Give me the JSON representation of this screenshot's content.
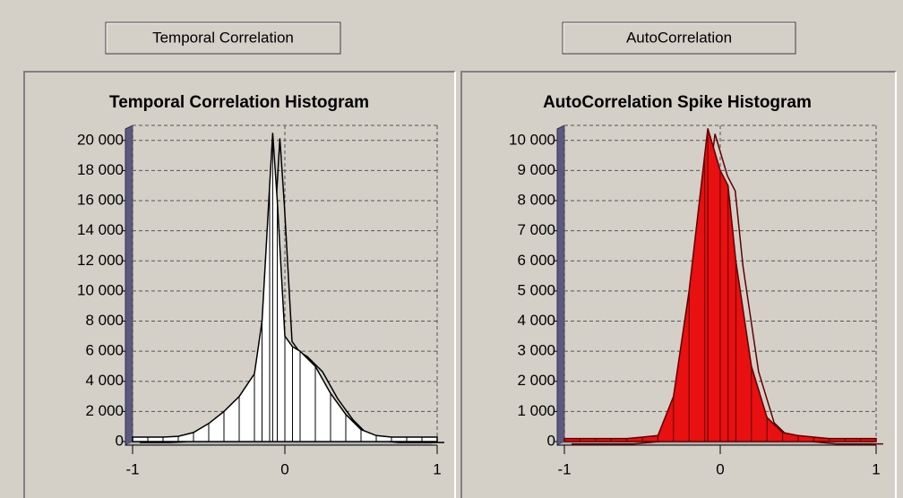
{
  "buttons": [
    "Temporal Correlation",
    "AutoCorrelation"
  ],
  "chart_data": [
    {
      "type": "area",
      "title": "Temporal Correlation Histogram",
      "color": "#ffffff",
      "stroke": "#000000",
      "x": [
        -1,
        -0.9,
        -0.8,
        -0.7,
        -0.6,
        -0.5,
        -0.4,
        -0.3,
        -0.2,
        -0.15,
        -0.1,
        -0.08,
        -0.05,
        0,
        0.05,
        0.1,
        0.2,
        0.3,
        0.4,
        0.5,
        0.6,
        0.7,
        0.8,
        0.9,
        1
      ],
      "values": [
        300,
        300,
        300,
        350,
        600,
        1200,
        2000,
        3000,
        4500,
        8000,
        17000,
        20500,
        16000,
        7000,
        6300,
        6000,
        5000,
        3200,
        1800,
        800,
        400,
        300,
        300,
        300,
        300
      ],
      "xlim": [
        -1,
        1
      ],
      "ylim": [
        0,
        21000
      ],
      "xticks": [
        -1,
        0,
        1
      ],
      "yticks": [
        0,
        {
          "value": 2000,
          "label": "2 000"
        },
        {
          "value": 4000,
          "label": "4 000"
        },
        {
          "value": 6000,
          "label": "6 000"
        },
        {
          "value": 8000,
          "label": "8 000"
        },
        {
          "value": 10000,
          "label": "10 000"
        },
        {
          "value": 12000,
          "label": "12 000"
        },
        {
          "value": 14000,
          "label": "14 000"
        },
        {
          "value": 16000,
          "label": "16 000"
        },
        {
          "value": 18000,
          "label": "18 000"
        },
        {
          "value": 20000,
          "label": "20 000"
        }
      ],
      "grid": true
    },
    {
      "type": "area",
      "title": "AutoCorrelation Spike Histogram",
      "color": "#e81010",
      "stroke": "#600000",
      "x": [
        -1,
        -0.9,
        -0.8,
        -0.7,
        -0.6,
        -0.5,
        -0.4,
        -0.3,
        -0.2,
        -0.1,
        -0.08,
        0,
        0.05,
        0.1,
        0.2,
        0.3,
        0.4,
        0.5,
        0.6,
        0.7,
        0.8,
        0.9,
        1
      ],
      "values": [
        100,
        100,
        100,
        100,
        100,
        150,
        200,
        1500,
        5000,
        9500,
        10400,
        9000,
        8500,
        6000,
        2500,
        800,
        300,
        200,
        150,
        100,
        100,
        100,
        100
      ],
      "xlim": [
        -1,
        1
      ],
      "ylim": [
        0,
        10500
      ],
      "xticks": [
        -1,
        0,
        1
      ],
      "yticks": [
        0,
        {
          "value": 1000,
          "label": "1 000"
        },
        {
          "value": 2000,
          "label": "2 000"
        },
        {
          "value": 3000,
          "label": "3 000"
        },
        {
          "value": 4000,
          "label": "4 000"
        },
        {
          "value": 5000,
          "label": "5 000"
        },
        {
          "value": 6000,
          "label": "6 000"
        },
        {
          "value": 7000,
          "label": "7 000"
        },
        {
          "value": 8000,
          "label": "8 000"
        },
        {
          "value": 9000,
          "label": "9 000"
        },
        {
          "value": 10000,
          "label": "10 000"
        }
      ],
      "grid": true
    }
  ]
}
